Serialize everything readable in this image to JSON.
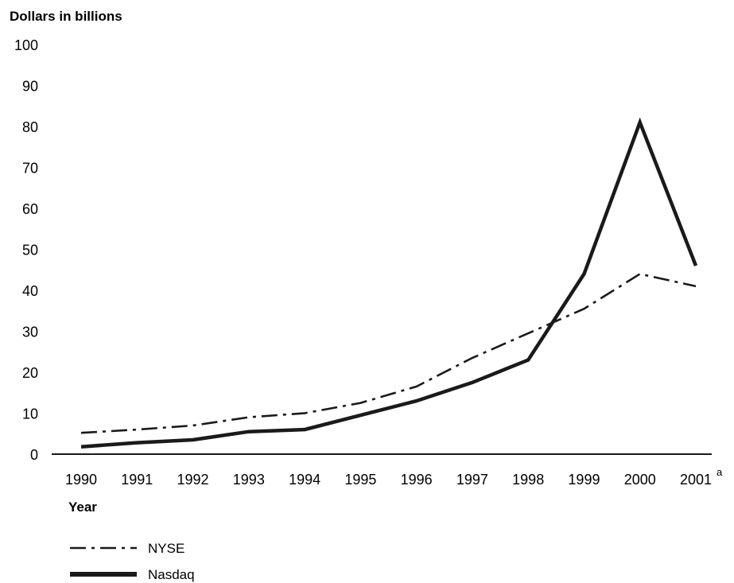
{
  "chart_data": {
    "type": "line",
    "title": "",
    "ylabel": "Dollars in billions",
    "xlabel": "Year",
    "ylim": [
      0,
      100
    ],
    "yticks": [
      0,
      10,
      20,
      30,
      40,
      50,
      60,
      70,
      80,
      90,
      100
    ],
    "x": [
      "1990",
      "1991",
      "1992",
      "1993",
      "1994",
      "1995",
      "1996",
      "1997",
      "1998",
      "1999",
      "2000",
      "2001"
    ],
    "last_x_superscript": "a",
    "grid": false,
    "legend": "bottom-left",
    "series": [
      {
        "name": "NYSE",
        "style": "dash-dot",
        "color": "#1a1a1a",
        "values": [
          5.2,
          6,
          7,
          9,
          10,
          12.5,
          16.5,
          23.5,
          29.5,
          35.5,
          44,
          41
        ]
      },
      {
        "name": "Nasdaq",
        "style": "solid",
        "color": "#1a1a1a",
        "values": [
          1.8,
          2.8,
          3.5,
          5.5,
          6,
          9.5,
          13,
          17.5,
          23,
          44,
          81,
          46
        ]
      }
    ]
  }
}
